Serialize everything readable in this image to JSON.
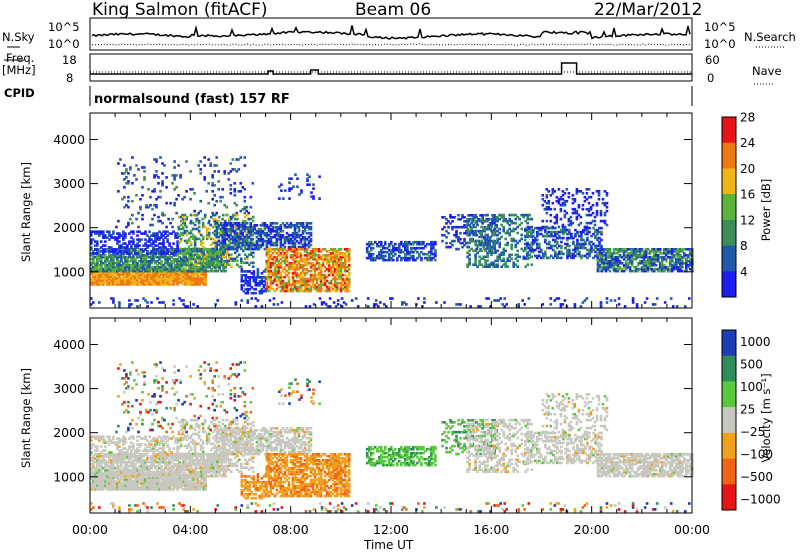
{
  "header": {
    "station": "King Salmon (fitACF)",
    "beam": "Beam 06",
    "date": "22/Mar/2012"
  },
  "aux_panels": {
    "nsky_label": "N.Sky",
    "nsearch_label": "N.Search",
    "freq_label_1": "Freq.",
    "freq_label_2": "[MHz]",
    "nave_label": "Nave",
    "cpid_label": "CPID",
    "cpid_text": "normalsound (fast) 157 RF",
    "noise_ticks": [
      "10^5",
      "10^0"
    ],
    "freq_ticks": [
      "18",
      "8"
    ],
    "nave_ticks": [
      "60",
      "0"
    ]
  },
  "chart_data": [
    {
      "type": "heatmap",
      "title": "Power",
      "ylabel": "Slant Range [km]",
      "ylim": [
        180,
        4600
      ],
      "yticks": [
        "1000",
        "2000",
        "3000",
        "4000"
      ],
      "xlim": [
        0,
        24
      ],
      "colorbar_label": "Power [dB]",
      "colorbar_ticks": [
        "4",
        "8",
        "12",
        "16",
        "20",
        "24",
        "28"
      ],
      "colors": [
        "#1e1ef0",
        "#1e5aa8",
        "#3c8c5a",
        "#5ab43c",
        "#f0b414",
        "#f07814",
        "#e61414"
      ]
    },
    {
      "type": "heatmap",
      "title": "Velocity",
      "ylabel": "Slant Range [km]",
      "ylim": [
        180,
        4600
      ],
      "yticks": [
        "1000",
        "2000",
        "3000",
        "4000"
      ],
      "xlim": [
        0,
        24
      ],
      "xlabel": "Time UT",
      "xticks": [
        "00:00",
        "04:00",
        "08:00",
        "12:00",
        "16:00",
        "20:00",
        "00:00"
      ],
      "colorbar_label": "Velocity [m s⁻¹]",
      "colorbar_ticks": [
        "1000",
        "500",
        "100",
        "25",
        "−25",
        "−100",
        "−500",
        "−1000"
      ],
      "colors": [
        "#1e3cb4",
        "#2d8c5a",
        "#5ac83c",
        "#c8c8c0",
        "#f0a01e",
        "#f06414",
        "#e61414"
      ]
    }
  ]
}
